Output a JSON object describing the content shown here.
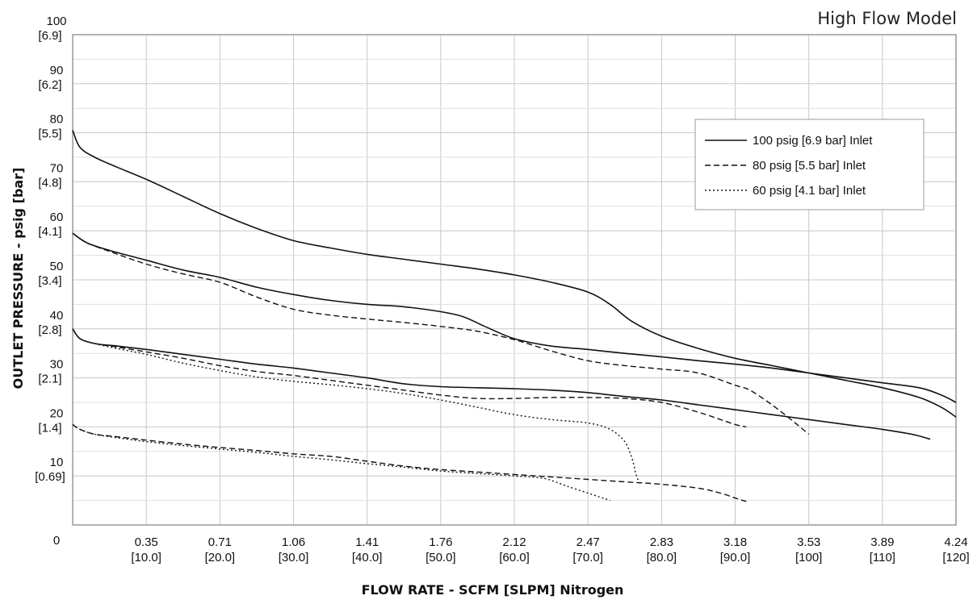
{
  "chart_data": {
    "type": "line",
    "title": "High Flow Model",
    "xlabel": "FLOW RATE - SCFM [SLPM] Nitrogen",
    "ylabel": "OUTLET PRESSURE - psig [bar]",
    "xlim": [
      0,
      120
    ],
    "ylim": [
      0,
      100
    ],
    "grid": true,
    "legend_position": "upper-right",
    "x_ticks": [
      {
        "value": 0,
        "label": "0",
        "sub": ""
      },
      {
        "value": 10,
        "label": "0.35",
        "sub": "[10.0]"
      },
      {
        "value": 20,
        "label": "0.71",
        "sub": "[20.0]"
      },
      {
        "value": 30,
        "label": "1.06",
        "sub": "[30.0]"
      },
      {
        "value": 40,
        "label": "1.41",
        "sub": "[40.0]"
      },
      {
        "value": 50,
        "label": "1.76",
        "sub": "[50.0]"
      },
      {
        "value": 60,
        "label": "2.12",
        "sub": "[60.0]"
      },
      {
        "value": 70,
        "label": "2.47",
        "sub": "[70.0]"
      },
      {
        "value": 80,
        "label": "2.83",
        "sub": "[80.0]"
      },
      {
        "value": 90,
        "label": "3.18",
        "sub": "[90.0]"
      },
      {
        "value": 100,
        "label": "3.53",
        "sub": "[100]"
      },
      {
        "value": 110,
        "label": "3.89",
        "sub": "[110]"
      },
      {
        "value": 120,
        "label": "4.24",
        "sub": "[120]"
      }
    ],
    "y_ticks": [
      {
        "value": 0,
        "label": "0",
        "sub": ""
      },
      {
        "value": 10,
        "label": "10",
        "sub": "[0.69]"
      },
      {
        "value": 20,
        "label": "20",
        "sub": "[1.4]"
      },
      {
        "value": 30,
        "label": "30",
        "sub": "[2.1]"
      },
      {
        "value": 40,
        "label": "40",
        "sub": "[2.8]"
      },
      {
        "value": 50,
        "label": "50",
        "sub": "[3.4]"
      },
      {
        "value": 60,
        "label": "60",
        "sub": "[4.1]"
      },
      {
        "value": 70,
        "label": "70",
        "sub": "[4.8]"
      },
      {
        "value": 80,
        "label": "80",
        "sub": "[5.5]"
      },
      {
        "value": 90,
        "label": "90",
        "sub": "[6.2]"
      },
      {
        "value": 100,
        "label": "100",
        "sub": "[6.9]"
      }
    ],
    "series": [
      {
        "name": "100 psig [6.9 bar] Inlet",
        "style": "solid",
        "curves": [
          [
            [
              0,
              80.5
            ],
            [
              1,
              77
            ],
            [
              3,
              75
            ],
            [
              6,
              73
            ],
            [
              10,
              70.5
            ],
            [
              15,
              67
            ],
            [
              20,
              63.5
            ],
            [
              25,
              60.5
            ],
            [
              30,
              58
            ],
            [
              35,
              56.5
            ],
            [
              40,
              55.2
            ],
            [
              45,
              54.2
            ],
            [
              50,
              53.2
            ],
            [
              55,
              52.2
            ],
            [
              60,
              51
            ],
            [
              65,
              49.5
            ],
            [
              70,
              47.5
            ],
            [
              73,
              45
            ],
            [
              76,
              41.5
            ],
            [
              80,
              38.5
            ],
            [
              85,
              36
            ],
            [
              90,
              34
            ],
            [
              95,
              32.5
            ],
            [
              100,
              31
            ],
            [
              105,
              29.5
            ],
            [
              110,
              28
            ],
            [
              115,
              26
            ],
            [
              118,
              24
            ],
            [
              120,
              22
            ]
          ],
          [
            [
              0,
              59.5
            ],
            [
              2,
              57.5
            ],
            [
              5,
              56
            ],
            [
              10,
              54
            ],
            [
              15,
              52
            ],
            [
              20,
              50.5
            ],
            [
              25,
              48.5
            ],
            [
              30,
              47
            ],
            [
              35,
              45.8
            ],
            [
              40,
              45
            ],
            [
              45,
              44.5
            ],
            [
              50,
              43.5
            ],
            [
              53,
              42.5
            ],
            [
              56,
              40.5
            ],
            [
              60,
              38
            ],
            [
              65,
              36.5
            ],
            [
              70,
              35.8
            ],
            [
              75,
              35
            ],
            [
              80,
              34.3
            ],
            [
              85,
              33.5
            ],
            [
              90,
              32.8
            ],
            [
              95,
              32
            ],
            [
              100,
              31
            ],
            [
              105,
              30
            ],
            [
              110,
              29
            ],
            [
              115,
              28
            ],
            [
              118,
              26.5
            ],
            [
              120,
              25
            ]
          ],
          [
            [
              0,
              40
            ],
            [
              1,
              38
            ],
            [
              3,
              37
            ],
            [
              6,
              36.5
            ],
            [
              10,
              35.8
            ],
            [
              15,
              34.8
            ],
            [
              20,
              33.8
            ],
            [
              25,
              32.8
            ],
            [
              30,
              32
            ],
            [
              35,
              31
            ],
            [
              40,
              30
            ],
            [
              45,
              28.8
            ],
            [
              50,
              28.2
            ],
            [
              55,
              28
            ],
            [
              60,
              27.8
            ],
            [
              65,
              27.5
            ],
            [
              70,
              27
            ],
            [
              75,
              26.2
            ],
            [
              80,
              25.5
            ],
            [
              85,
              24.5
            ],
            [
              90,
              23.5
            ],
            [
              95,
              22.5
            ],
            [
              100,
              21.5
            ],
            [
              105,
              20.5
            ],
            [
              110,
              19.5
            ],
            [
              114,
              18.5
            ],
            [
              116.5,
              17.5
            ]
          ],
          [
            [
              0,
              20.5
            ]
          ]
        ]
      },
      {
        "name": "80 psig [5.5 bar] Inlet",
        "style": "dashed",
        "curves": [
          [
            [
              0,
              59.5
            ],
            [
              2,
              57.5
            ],
            [
              5,
              55.8
            ],
            [
              10,
              53.2
            ],
            [
              15,
              51.2
            ],
            [
              20,
              49.5
            ],
            [
              25,
              46.5
            ],
            [
              30,
              44
            ],
            [
              35,
              42.8
            ],
            [
              40,
              42
            ],
            [
              45,
              41.3
            ],
            [
              50,
              40.5
            ],
            [
              55,
              39.5
            ],
            [
              60,
              37.8
            ],
            [
              65,
              35.5
            ],
            [
              70,
              33.5
            ],
            [
              75,
              32.5
            ],
            [
              80,
              31.8
            ],
            [
              85,
              31
            ],
            [
              90,
              28.5
            ],
            [
              92,
              27.5
            ],
            [
              95,
              24.5
            ],
            [
              98,
              21
            ],
            [
              100,
              18.5
            ]
          ],
          [
            [
              0,
              40
            ],
            [
              1,
              38
            ],
            [
              3,
              37
            ],
            [
              6,
              36.3
            ],
            [
              10,
              35.3
            ],
            [
              15,
              34
            ],
            [
              20,
              32.5
            ],
            [
              25,
              31.3
            ],
            [
              30,
              30.5
            ],
            [
              35,
              29.5
            ],
            [
              40,
              28.5
            ],
            [
              45,
              27.5
            ],
            [
              50,
              26.5
            ],
            [
              55,
              25.8
            ],
            [
              60,
              25.8
            ],
            [
              65,
              26
            ],
            [
              70,
              26
            ],
            [
              75,
              25.8
            ],
            [
              80,
              25
            ],
            [
              85,
              23
            ],
            [
              88,
              21.5
            ],
            [
              90,
              20.5
            ],
            [
              91.5,
              20
            ]
          ],
          [
            [
              0,
              20.5
            ],
            [
              1,
              19.5
            ],
            [
              3,
              18.5
            ],
            [
              6,
              18
            ],
            [
              10,
              17.3
            ],
            [
              15,
              16.5
            ],
            [
              20,
              15.8
            ],
            [
              25,
              15.2
            ],
            [
              30,
              14.5
            ],
            [
              35,
              14
            ],
            [
              40,
              13
            ],
            [
              45,
              12
            ],
            [
              50,
              11.3
            ],
            [
              55,
              10.8
            ],
            [
              60,
              10.3
            ],
            [
              65,
              9.8
            ],
            [
              70,
              9.3
            ],
            [
              75,
              8.8
            ],
            [
              80,
              8.3
            ],
            [
              85,
              7.5
            ],
            [
              88,
              6.5
            ],
            [
              90,
              5.5
            ],
            [
              91.5,
              4.8
            ]
          ]
        ]
      },
      {
        "name": "60 psig [4.1 bar] Inlet",
        "style": "dotted",
        "curves": [
          [
            [
              0,
              40
            ],
            [
              1,
              38
            ],
            [
              3,
              37
            ],
            [
              6,
              36
            ],
            [
              10,
              34.8
            ],
            [
              15,
              33
            ],
            [
              20,
              31.5
            ],
            [
              25,
              30.2
            ],
            [
              30,
              29.3
            ],
            [
              35,
              28.6
            ],
            [
              40,
              27.8
            ],
            [
              45,
              26.8
            ],
            [
              50,
              25.5
            ],
            [
              55,
              24
            ],
            [
              60,
              22.5
            ],
            [
              65,
              21.5
            ],
            [
              70,
              20.8
            ],
            [
              73,
              19.5
            ],
            [
              75,
              17
            ],
            [
              76,
              13.5
            ],
            [
              76.5,
              10.5
            ],
            [
              77,
              8.5
            ]
          ],
          [
            [
              0,
              20.5
            ],
            [
              1,
              19.5
            ],
            [
              3,
              18.5
            ],
            [
              6,
              17.8
            ],
            [
              10,
              17
            ],
            [
              15,
              16.2
            ],
            [
              20,
              15.5
            ],
            [
              25,
              14.8
            ],
            [
              30,
              14
            ],
            [
              35,
              13.3
            ],
            [
              40,
              12.5
            ],
            [
              45,
              11.8
            ],
            [
              50,
              11
            ],
            [
              55,
              10.5
            ],
            [
              60,
              10
            ],
            [
              64,
              9.5
            ],
            [
              67,
              8
            ],
            [
              70,
              6.5
            ],
            [
              72,
              5.5
            ],
            [
              73,
              5
            ]
          ]
        ]
      }
    ]
  }
}
